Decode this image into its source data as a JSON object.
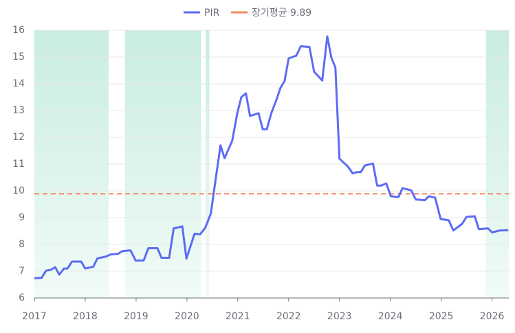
{
  "chart_data": {
    "type": "line",
    "series": [
      {
        "name": "PIR",
        "color": "#5b6cf5",
        "x": [
          2017,
          2017.14,
          2017.23,
          2017.32,
          2017.41,
          2017.49,
          2017.58,
          2017.65,
          2017.74,
          2017.92,
          2018,
          2018.16,
          2018.24,
          2018.41,
          2018.49,
          2018.65,
          2018.73,
          2018.89,
          2018.99,
          2019.15,
          2019.24,
          2019.42,
          2019.5,
          2019.65,
          2019.74,
          2019.91,
          2019.99,
          2020.15,
          2020.26,
          2020.36,
          2020.47,
          2020.57,
          2020.66,
          2020.74,
          2020.89,
          2020.99,
          2021.07,
          2021.16,
          2021.24,
          2021.41,
          2021.49,
          2021.57,
          2021.66,
          2021.76,
          2021.84,
          2021.92,
          2022,
          2022.15,
          2022.24,
          2022.41,
          2022.5,
          2022.66,
          2022.76,
          2022.84,
          2022.92,
          2023,
          2023.16,
          2023.26,
          2023.34,
          2023.42,
          2023.5,
          2023.66,
          2023.74,
          2023.82,
          2023.92,
          2024.01,
          2024.16,
          2024.24,
          2024.41,
          2024.5,
          2024.68,
          2024.76,
          2024.88,
          2024.99,
          2025.15,
          2025.24,
          2025.41,
          2025.5,
          2025.66,
          2025.74,
          2025.92,
          2026,
          2026.15,
          2026.32
        ],
        "values": [
          6.74,
          6.75,
          7.02,
          7.05,
          7.15,
          6.87,
          7.1,
          7.1,
          7.36,
          7.36,
          7.1,
          7.17,
          7.48,
          7.55,
          7.62,
          7.65,
          7.75,
          7.78,
          7.4,
          7.4,
          7.86,
          7.86,
          7.5,
          7.5,
          8.6,
          8.67,
          7.47,
          8.4,
          8.38,
          8.62,
          9.15,
          10.5,
          11.7,
          11.22,
          11.87,
          12.9,
          13.5,
          13.64,
          12.8,
          12.9,
          12.3,
          12.3,
          12.9,
          13.4,
          13.85,
          14.1,
          14.95,
          15.05,
          15.4,
          15.37,
          14.45,
          14.12,
          15.77,
          14.98,
          14.6,
          11.2,
          10.92,
          10.65,
          10.7,
          10.7,
          10.95,
          11.02,
          10.2,
          10.2,
          10.28,
          9.8,
          9.77,
          10.1,
          10.02,
          9.68,
          9.65,
          9.8,
          9.75,
          8.95,
          8.9,
          8.52,
          8.77,
          9.03,
          9.05,
          8.57,
          8.6,
          8.45,
          8.52,
          8.53
        ]
      },
      {
        "name": "장기평균 9.89",
        "color": "#f5875f",
        "value": 9.89
      }
    ],
    "shaded_ranges": [
      [
        2017,
        2018.46
      ],
      [
        2018.78,
        2020.28
      ],
      [
        2020.37,
        2020.44
      ],
      [
        2025.88,
        2026.33
      ]
    ],
    "xlim": [
      2017,
      2026.33
    ],
    "xticks": [
      2017,
      2018,
      2019,
      2020,
      2021,
      2022,
      2023,
      2024,
      2025,
      2026
    ],
    "ylim": [
      6,
      16
    ],
    "yticks": [
      6,
      7,
      8,
      9,
      10,
      11,
      12,
      13,
      14,
      15,
      16
    ],
    "grid": true
  }
}
